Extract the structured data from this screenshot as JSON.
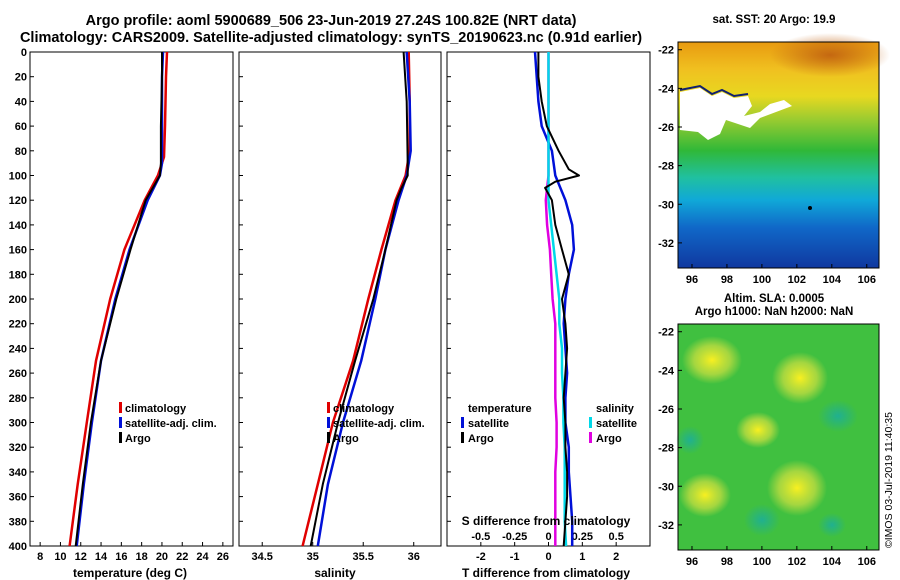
{
  "header": {
    "line1": "Argo profile: aoml 5900689_506 23-Jun-2019 27.24S 100.82E (NRT data)",
    "line2": "Climatology: CARS2009. Satellite-adjusted climatology: synTS_20190623.nc (0.91d earlier)"
  },
  "colors": {
    "climatology": "#e00000",
    "satellite": "#0010d8",
    "argo": "#000000",
    "sat_salinity": "#00d8e8",
    "clim_salinity": "#e000e0"
  },
  "chart_data": [
    {
      "type": "line",
      "title": "",
      "xlabel": "temperature (deg C)",
      "ylabel": "",
      "xlim": [
        7,
        27
      ],
      "ylim": [
        0,
        400
      ],
      "y_inverted": true,
      "xticks": [
        8,
        10,
        12,
        14,
        16,
        18,
        20,
        22,
        24,
        26
      ],
      "yticks": [
        0,
        20,
        40,
        60,
        80,
        100,
        120,
        140,
        160,
        180,
        200,
        220,
        240,
        260,
        280,
        300,
        320,
        340,
        360,
        380,
        400
      ],
      "legend": [
        "climatology",
        "satellite-adj. clim.",
        "Argo"
      ],
      "series": [
        {
          "name": "climatology",
          "depth": [
            0,
            20,
            60,
            85,
            100,
            120,
            160,
            200,
            250,
            300,
            350,
            400
          ],
          "values": [
            20.5,
            20.4,
            20.3,
            20.2,
            19.6,
            18.3,
            16.3,
            14.9,
            13.5,
            12.6,
            11.7,
            10.9
          ]
        },
        {
          "name": "satellite-adj. clim.",
          "depth": [
            0,
            20,
            60,
            90,
            100,
            120,
            160,
            200,
            250,
            300,
            350,
            400
          ],
          "values": [
            20.1,
            20.0,
            20.0,
            20.0,
            19.8,
            18.6,
            16.8,
            15.4,
            14.0,
            13.1,
            12.3,
            11.6
          ]
        },
        {
          "name": "Argo",
          "depth": [
            0,
            20,
            60,
            90,
            100,
            120,
            160,
            200,
            250,
            300,
            350,
            400
          ],
          "values": [
            20.0,
            20.0,
            19.9,
            19.9,
            19.8,
            18.4,
            16.9,
            15.5,
            14.0,
            13.0,
            12.2,
            11.5
          ]
        }
      ]
    },
    {
      "type": "line",
      "title": "",
      "xlabel": "salinity",
      "ylabel": "",
      "xlim": [
        34.27,
        36.27
      ],
      "ylim": [
        0,
        400
      ],
      "y_inverted": true,
      "xticks": [
        34.5,
        35,
        35.5,
        36
      ],
      "xtick_labels": [
        "34.5",
        "35",
        "35.5",
        "36"
      ],
      "legend": [
        "climatology",
        "satellite-adj. clim.",
        "Argo"
      ],
      "series": [
        {
          "name": "climatology",
          "depth": [
            0,
            40,
            80,
            100,
            120,
            160,
            200,
            250,
            300,
            350,
            400
          ],
          "values": [
            35.95,
            35.96,
            35.96,
            35.92,
            35.82,
            35.68,
            35.55,
            35.4,
            35.2,
            35.05,
            34.9
          ]
        },
        {
          "name": "satellite-adj. clim.",
          "depth": [
            0,
            40,
            80,
            100,
            120,
            160,
            200,
            250,
            300,
            350,
            400
          ],
          "values": [
            35.93,
            35.96,
            35.97,
            35.93,
            35.85,
            35.72,
            35.62,
            35.48,
            35.3,
            35.15,
            35.05
          ]
        },
        {
          "name": "Argo",
          "depth": [
            0,
            40,
            90,
            100,
            110,
            120,
            160,
            200,
            250,
            300,
            350,
            400
          ],
          "values": [
            35.9,
            35.93,
            35.94,
            35.94,
            35.88,
            35.83,
            35.72,
            35.6,
            35.42,
            35.25,
            35.1,
            34.98
          ]
        }
      ]
    },
    {
      "type": "line",
      "title": "",
      "xlabel": "T difference from climatology",
      "x2label": "S difference from climatology",
      "ylabel": "",
      "xlim": [
        -3,
        3
      ],
      "ylim": [
        0,
        400
      ],
      "y_inverted": true,
      "xticks": [
        -2,
        -1,
        0,
        1,
        2
      ],
      "xtick_labels": [
        "-2",
        "-1",
        "0",
        "1",
        "2"
      ],
      "x2ticks": [
        -0.5,
        -0.25,
        0,
        0.25,
        0.5
      ],
      "x2tick_labels": [
        "-0.5",
        "-0.25",
        "0",
        "0.25",
        "0.5"
      ],
      "legend_temperature": [
        "temperature",
        "satellite",
        "Argo"
      ],
      "legend_salinity": [
        "salinity",
        "satellite",
        "Argo"
      ],
      "series": [
        {
          "name": "T satellite",
          "depth": [
            0,
            20,
            40,
            60,
            80,
            100,
            120,
            140,
            160,
            180,
            200,
            220,
            240,
            260,
            280,
            300,
            320,
            340,
            360,
            380,
            400
          ],
          "values": [
            -0.4,
            -0.35,
            -0.3,
            -0.2,
            0.1,
            0.2,
            0.5,
            0.7,
            0.75,
            0.6,
            0.5,
            0.45,
            0.5,
            0.55,
            0.5,
            0.5,
            0.6,
            0.6,
            0.65,
            0.7,
            0.7
          ]
        },
        {
          "name": "T Argo",
          "depth": [
            0,
            20,
            40,
            60,
            80,
            95,
            100,
            105,
            110,
            120,
            140,
            160,
            180,
            200,
            220,
            240,
            260,
            280,
            300,
            320,
            340,
            360,
            380,
            400
          ],
          "values": [
            -0.3,
            -0.3,
            -0.2,
            -0.05,
            0.3,
            0.6,
            0.9,
            0.2,
            -0.1,
            0.1,
            0.2,
            0.4,
            0.6,
            0.4,
            0.5,
            0.55,
            0.5,
            0.45,
            0.5,
            0.5,
            0.55,
            0.55,
            0.5,
            0.45
          ]
        },
        {
          "name": "S satellite",
          "depth": [
            0,
            20,
            40,
            60,
            80,
            100,
            120,
            140,
            160,
            180,
            200,
            220,
            240,
            260,
            280,
            300,
            320,
            340,
            360,
            380,
            400
          ],
          "values": [
            0.0,
            0.0,
            0.0,
            0.0,
            0.0,
            0.0,
            0.0,
            0.02,
            0.04,
            0.06,
            0.08,
            0.08,
            0.1,
            0.1,
            0.11,
            0.11,
            0.12,
            0.12,
            0.12,
            0.12,
            0.13
          ]
        },
        {
          "name": "S clim",
          "depth": [
            0,
            20,
            40,
            60,
            80,
            100,
            110,
            120,
            140,
            160,
            180,
            200,
            220,
            240,
            260,
            280,
            300,
            320,
            340,
            360,
            380,
            400
          ],
          "values": [
            0.0,
            0.0,
            0.0,
            0.0,
            0.0,
            0.0,
            -0.01,
            -0.02,
            -0.01,
            0.01,
            0.02,
            0.03,
            0.05,
            0.05,
            0.05,
            0.05,
            0.06,
            0.06,
            0.05,
            0.05,
            0.05,
            0.05
          ]
        }
      ]
    }
  ],
  "maps": {
    "sst_title": "sat. SST: 20 Argo: 19.9",
    "sla_title1": "Altim. SLA: 0.0005",
    "sla_title2": "Argo h1000: NaN h2000: NaN",
    "lon_ticks": [
      96,
      98,
      100,
      102,
      104,
      106
    ],
    "lat_ticks": [
      -22,
      -24,
      -26,
      -28,
      -30,
      -32
    ]
  },
  "footer": "©IMOS 03-Jul-2019 11:40:35"
}
